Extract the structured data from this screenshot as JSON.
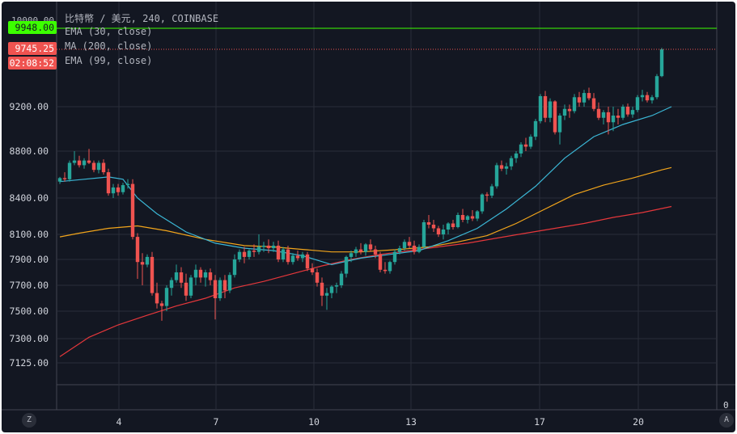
{
  "header": {
    "symbol_line": "比特幣 / 美元, 240, COINBASE",
    "indicators": [
      "EMA (30, close)",
      "MA (200, close)",
      "EMA (99, close)"
    ]
  },
  "price_tags": {
    "hidden_top": "10000.00",
    "green_price": "9948.00",
    "red_price": "9745.25",
    "countdown": "02:08:52"
  },
  "bottom_bar": {
    "left_button": "Z",
    "right_button": "A",
    "indicator_zero": "0"
  },
  "colors": {
    "background": "#131722",
    "grid": "#2a2e39",
    "up": "#26a69a",
    "down": "#ef5350",
    "ema30": "#3bb7d6",
    "ma200": "#f2a51b",
    "ema99": "#e5373b",
    "green_line": "#3cff00"
  },
  "chart_data": {
    "type": "candlestick",
    "title": "比特幣 / 美元, 240, COINBASE",
    "y_ticks": [
      9200,
      8800,
      8400,
      8100,
      7900,
      7700,
      7500,
      7300,
      7125
    ],
    "y_tick_labels": [
      "9200.00",
      "8800.00",
      "8400.00",
      "8100.00",
      "7900.00",
      "7700.00",
      "7500.00",
      "7300.00",
      "7125.00"
    ],
    "x_tick_labels": [
      "4",
      "7",
      "10",
      "13",
      "17",
      "20"
    ],
    "horizontal_lines": [
      {
        "value": 9948,
        "style": "solid",
        "color": "green"
      },
      {
        "value": 9745.25,
        "style": "dotted",
        "color": "red"
      }
    ],
    "candles_ohlc": [
      [
        8540,
        8580,
        8520,
        8570
      ],
      [
        8570,
        8620,
        8540,
        8560
      ],
      [
        8560,
        8720,
        8540,
        8700
      ],
      [
        8700,
        8800,
        8680,
        8720
      ],
      [
        8720,
        8760,
        8660,
        8680
      ],
      [
        8680,
        8740,
        8650,
        8720
      ],
      [
        8720,
        8820,
        8690,
        8700
      ],
      [
        8700,
        8720,
        8620,
        8640
      ],
      [
        8640,
        8720,
        8610,
        8700
      ],
      [
        8700,
        8730,
        8600,
        8620
      ],
      [
        8620,
        8650,
        8420,
        8440
      ],
      [
        8440,
        8520,
        8400,
        8490
      ],
      [
        8490,
        8520,
        8420,
        8450
      ],
      [
        8450,
        8530,
        8430,
        8510
      ],
      [
        8510,
        8560,
        8480,
        8520
      ],
      [
        8520,
        8560,
        8060,
        8080
      ],
      [
        8080,
        8110,
        7750,
        7880
      ],
      [
        7880,
        7950,
        7700,
        7860
      ],
      [
        7860,
        7940,
        7840,
        7920
      ],
      [
        7920,
        7960,
        7620,
        7640
      ],
      [
        7640,
        7720,
        7520,
        7560
      ],
      [
        7560,
        7580,
        7430,
        7540
      ],
      [
        7540,
        7700,
        7500,
        7680
      ],
      [
        7680,
        7760,
        7620,
        7740
      ],
      [
        7740,
        7860,
        7720,
        7800
      ],
      [
        7800,
        7840,
        7680,
        7720
      ],
      [
        7720,
        7790,
        7580,
        7620
      ],
      [
        7620,
        7780,
        7600,
        7760
      ],
      [
        7760,
        7860,
        7700,
        7820
      ],
      [
        7820,
        7840,
        7720,
        7760
      ],
      [
        7760,
        7820,
        7690,
        7800
      ],
      [
        7800,
        7830,
        7700,
        7740
      ],
      [
        7740,
        7780,
        7440,
        7600
      ],
      [
        7600,
        7760,
        7580,
        7740
      ],
      [
        7740,
        7780,
        7600,
        7660
      ],
      [
        7660,
        7800,
        7640,
        7780
      ],
      [
        7780,
        7940,
        7760,
        7900
      ],
      [
        7900,
        7980,
        7880,
        7960
      ],
      [
        7960,
        8000,
        7870,
        7920
      ],
      [
        7920,
        7980,
        7900,
        7970
      ],
      [
        7970,
        8020,
        7920,
        7960
      ],
      [
        7960,
        8100,
        7940,
        8000
      ],
      [
        8000,
        8040,
        7960,
        8010
      ],
      [
        8010,
        8060,
        7950,
        7990
      ],
      [
        7990,
        8040,
        7960,
        8010
      ],
      [
        8010,
        8050,
        7880,
        7900
      ],
      [
        7900,
        8000,
        7880,
        7980
      ],
      [
        7980,
        8010,
        7860,
        7880
      ],
      [
        7880,
        7950,
        7860,
        7930
      ],
      [
        7930,
        7970,
        7890,
        7910
      ],
      [
        7910,
        7960,
        7880,
        7940
      ],
      [
        7940,
        7960,
        7810,
        7830
      ],
      [
        7830,
        7870,
        7780,
        7800
      ],
      [
        7800,
        7830,
        7690,
        7720
      ],
      [
        7720,
        7760,
        7540,
        7620
      ],
      [
        7620,
        7680,
        7510,
        7640
      ],
      [
        7640,
        7700,
        7600,
        7690
      ],
      [
        7690,
        7720,
        7640,
        7700
      ],
      [
        7700,
        7810,
        7680,
        7790
      ],
      [
        7790,
        7930,
        7760,
        7920
      ],
      [
        7920,
        7970,
        7880,
        7950
      ],
      [
        7950,
        8000,
        7920,
        7980
      ],
      [
        7980,
        8030,
        7940,
        7960
      ],
      [
        7960,
        8030,
        7930,
        8020
      ],
      [
        8020,
        8060,
        7960,
        7980
      ],
      [
        7980,
        8010,
        7910,
        7940
      ],
      [
        7940,
        7960,
        7800,
        7820
      ],
      [
        7820,
        7880,
        7790,
        7810
      ],
      [
        7810,
        7890,
        7790,
        7880
      ],
      [
        7880,
        7980,
        7860,
        7960
      ],
      [
        7960,
        8010,
        7940,
        7990
      ],
      [
        7990,
        8060,
        7970,
        8040
      ],
      [
        8040,
        8080,
        7990,
        8010
      ],
      [
        8010,
        8050,
        7940,
        7960
      ],
      [
        7960,
        8020,
        7950,
        8000
      ],
      [
        8000,
        8220,
        7990,
        8200
      ],
      [
        8200,
        8260,
        8150,
        8180
      ],
      [
        8180,
        8220,
        8120,
        8150
      ],
      [
        8150,
        8170,
        8080,
        8100
      ],
      [
        8100,
        8180,
        8060,
        8140
      ],
      [
        8140,
        8200,
        8100,
        8190
      ],
      [
        8190,
        8220,
        8140,
        8160
      ],
      [
        8160,
        8280,
        8150,
        8260
      ],
      [
        8260,
        8310,
        8200,
        8220
      ],
      [
        8220,
        8260,
        8190,
        8250
      ],
      [
        8250,
        8300,
        8210,
        8230
      ],
      [
        8230,
        8300,
        8210,
        8290
      ],
      [
        8290,
        8440,
        8270,
        8430
      ],
      [
        8430,
        8450,
        8370,
        8420
      ],
      [
        8420,
        8520,
        8400,
        8500
      ],
      [
        8500,
        8700,
        8480,
        8680
      ],
      [
        8680,
        8720,
        8630,
        8650
      ],
      [
        8650,
        8700,
        8600,
        8670
      ],
      [
        8670,
        8760,
        8640,
        8740
      ],
      [
        8740,
        8800,
        8700,
        8780
      ],
      [
        8780,
        8880,
        8750,
        8860
      ],
      [
        8860,
        8920,
        8800,
        8840
      ],
      [
        8840,
        8950,
        8820,
        8930
      ],
      [
        8930,
        9090,
        8900,
        9070
      ],
      [
        9070,
        9320,
        9050,
        9300
      ],
      [
        9300,
        9350,
        9060,
        9100
      ],
      [
        9100,
        9280,
        9060,
        9250
      ],
      [
        9250,
        9260,
        8950,
        8970
      ],
      [
        8970,
        9140,
        8860,
        9120
      ],
      [
        9120,
        9220,
        9080,
        9180
      ],
      [
        9180,
        9220,
        9100,
        9160
      ],
      [
        9160,
        9320,
        9140,
        9290
      ],
      [
        9290,
        9340,
        9200,
        9240
      ],
      [
        9240,
        9360,
        9200,
        9330
      ],
      [
        9330,
        9380,
        9260,
        9280
      ],
      [
        9280,
        9330,
        9160,
        9180
      ],
      [
        9180,
        9240,
        9080,
        9100
      ],
      [
        9100,
        9170,
        9040,
        9150
      ],
      [
        9150,
        9200,
        8950,
        9060
      ],
      [
        9060,
        9200,
        8980,
        9120
      ],
      [
        9120,
        9180,
        9040,
        9100
      ],
      [
        9100,
        9220,
        9080,
        9200
      ],
      [
        9200,
        9230,
        9110,
        9130
      ],
      [
        9130,
        9200,
        9100,
        9170
      ],
      [
        9170,
        9310,
        9150,
        9290
      ],
      [
        9290,
        9360,
        9250,
        9310
      ],
      [
        9310,
        9340,
        9240,
        9260
      ],
      [
        9260,
        9310,
        9230,
        9290
      ],
      [
        9290,
        9510,
        9270,
        9490
      ],
      [
        9490,
        9760,
        9480,
        9745
      ]
    ],
    "ema30": [
      [
        0,
        8540
      ],
      [
        5,
        8560
      ],
      [
        10,
        8580
      ],
      [
        13,
        8560
      ],
      [
        16,
        8400
      ],
      [
        20,
        8270
      ],
      [
        26,
        8120
      ],
      [
        32,
        8030
      ],
      [
        38,
        7990
      ],
      [
        44,
        7970
      ],
      [
        50,
        7930
      ],
      [
        56,
        7860
      ],
      [
        62,
        7910
      ],
      [
        68,
        7940
      ],
      [
        74,
        7970
      ],
      [
        80,
        8050
      ],
      [
        86,
        8150
      ],
      [
        92,
        8310
      ],
      [
        98,
        8500
      ],
      [
        104,
        8740
      ],
      [
        110,
        8930
      ],
      [
        116,
        9040
      ],
      [
        122,
        9120
      ],
      [
        126,
        9200
      ]
    ],
    "ma200": [
      [
        0,
        8080
      ],
      [
        4,
        8110
      ],
      [
        10,
        8150
      ],
      [
        16,
        8170
      ],
      [
        22,
        8130
      ],
      [
        30,
        8060
      ],
      [
        38,
        8010
      ],
      [
        44,
        8000
      ],
      [
        50,
        7980
      ],
      [
        56,
        7960
      ],
      [
        62,
        7960
      ],
      [
        70,
        7980
      ],
      [
        76,
        8000
      ],
      [
        82,
        8040
      ],
      [
        88,
        8090
      ],
      [
        94,
        8190
      ],
      [
        100,
        8310
      ],
      [
        106,
        8430
      ],
      [
        112,
        8510
      ],
      [
        118,
        8570
      ],
      [
        124,
        8640
      ],
      [
        126,
        8660
      ]
    ],
    "ema99": [
      [
        0,
        7170
      ],
      [
        6,
        7310
      ],
      [
        12,
        7400
      ],
      [
        18,
        7470
      ],
      [
        24,
        7540
      ],
      [
        30,
        7600
      ],
      [
        36,
        7680
      ],
      [
        42,
        7730
      ],
      [
        48,
        7790
      ],
      [
        54,
        7850
      ],
      [
        60,
        7900
      ],
      [
        66,
        7940
      ],
      [
        72,
        7970
      ],
      [
        78,
        8000
      ],
      [
        84,
        8030
      ],
      [
        90,
        8070
      ],
      [
        96,
        8110
      ],
      [
        102,
        8150
      ],
      [
        108,
        8190
      ],
      [
        114,
        8240
      ],
      [
        120,
        8280
      ],
      [
        126,
        8330
      ]
    ]
  }
}
